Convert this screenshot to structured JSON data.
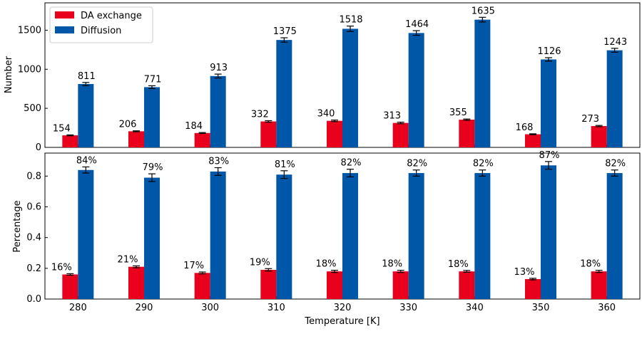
{
  "chart_data": [
    {
      "type": "bar",
      "categories": [
        "280",
        "290",
        "300",
        "310",
        "320",
        "330",
        "340",
        "350",
        "360"
      ],
      "series": [
        {
          "name": "DA exchange",
          "color": "#e8001c",
          "values": [
            154,
            206,
            184,
            332,
            340,
            313,
            355,
            168,
            273
          ],
          "errors": [
            6,
            6,
            6,
            10,
            10,
            10,
            8,
            6,
            8
          ],
          "labels": [
            "154",
            "206",
            "184",
            "332",
            "340",
            "313",
            "355",
            "168",
            "273"
          ]
        },
        {
          "name": "Diffusion",
          "color": "#0057a8",
          "values": [
            811,
            771,
            913,
            1375,
            1518,
            1464,
            1635,
            1126,
            1243
          ],
          "errors": [
            20,
            18,
            25,
            28,
            35,
            30,
            30,
            22,
            25
          ],
          "labels": [
            "811",
            "771",
            "913",
            "1375",
            "1518",
            "1464",
            "1635",
            "1126",
            "1243"
          ]
        }
      ],
      "ylabel": "Number",
      "ylim": [
        0,
        1850
      ],
      "yticks": [
        0,
        500,
        1000,
        1500
      ],
      "ytick_labels": [
        "0",
        "500",
        "1000",
        "1500"
      ],
      "legend": "top-left",
      "grid": false
    },
    {
      "type": "bar",
      "categories": [
        "280",
        "290",
        "300",
        "310",
        "320",
        "330",
        "340",
        "350",
        "360"
      ],
      "series": [
        {
          "name": "DA exchange",
          "color": "#e8001c",
          "values": [
            0.16,
            0.21,
            0.17,
            0.19,
            0.18,
            0.18,
            0.18,
            0.13,
            0.18
          ],
          "errors": [
            0.005,
            0.006,
            0.006,
            0.008,
            0.007,
            0.007,
            0.006,
            0.005,
            0.007
          ],
          "labels": [
            "16%",
            "21%",
            "17%",
            "19%",
            "18%",
            "18%",
            "18%",
            "13%",
            "18%"
          ]
        },
        {
          "name": "Diffusion",
          "color": "#0057a8",
          "values": [
            0.84,
            0.79,
            0.83,
            0.81,
            0.82,
            0.82,
            0.82,
            0.87,
            0.82
          ],
          "errors": [
            0.02,
            0.025,
            0.025,
            0.025,
            0.025,
            0.02,
            0.02,
            0.025,
            0.02
          ],
          "labels": [
            "84%",
            "79%",
            "83%",
            "81%",
            "82%",
            "82%",
            "82%",
            "87%",
            "82%"
          ]
        }
      ],
      "ylabel": "Percentage",
      "xlabel": "Temperature [K]",
      "ylim": [
        0,
        0.95
      ],
      "yticks": [
        0,
        0.2,
        0.4,
        0.6,
        0.8
      ],
      "ytick_labels": [
        "0.0",
        "0.2",
        "0.4",
        "0.6",
        "0.8"
      ],
      "grid": false
    }
  ]
}
